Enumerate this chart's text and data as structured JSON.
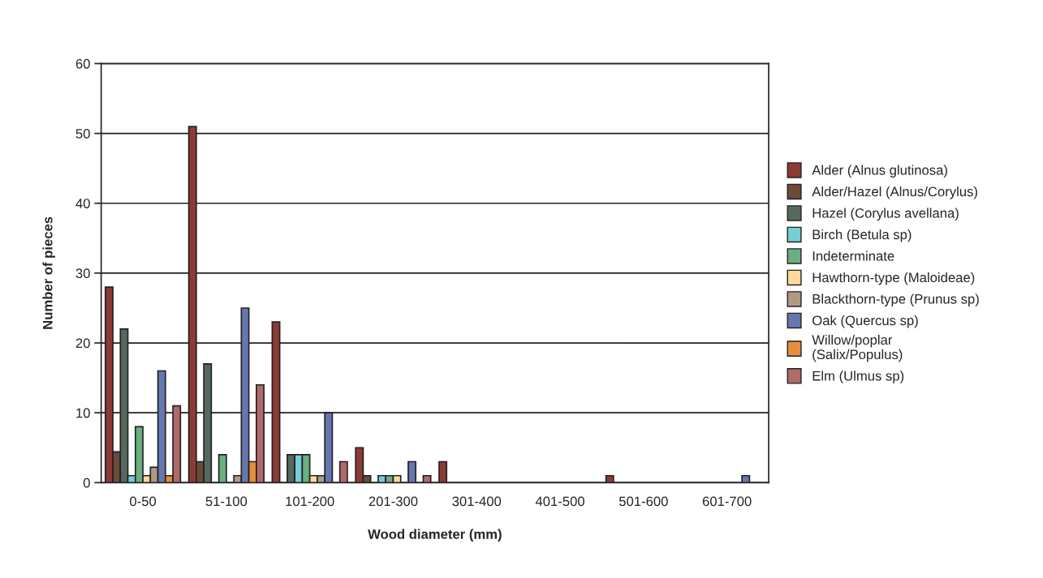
{
  "chart_data": {
    "type": "bar",
    "xlabel": "Wood diameter (mm)",
    "ylabel": "Number of pieces",
    "categories": [
      "0-50",
      "51-100",
      "101-200",
      "201-300",
      "301-400",
      "401-500",
      "501-600",
      "601-700"
    ],
    "series": [
      {
        "name": "Alder (Alnus glutinosa)",
        "color": "#8b3a35",
        "values": [
          28,
          51,
          23,
          5,
          3,
          null,
          1,
          null
        ]
      },
      {
        "name": "Alder/Hazel (Alnus/Corylus)",
        "color": "#6b4a3a",
        "values": [
          4.4,
          3,
          null,
          1,
          null,
          null,
          null,
          null
        ]
      },
      {
        "name": "Hazel (Corylus avellana)",
        "color": "#56695f",
        "values": [
          22,
          17,
          4,
          null,
          null,
          null,
          null,
          null
        ]
      },
      {
        "name": "Birch (Betula sp)",
        "color": "#76cdd6",
        "values": [
          1,
          null,
          4,
          1,
          null,
          null,
          null,
          null
        ]
      },
      {
        "name": "Indeterminate",
        "color": "#6aae82",
        "values": [
          8,
          4,
          4,
          1,
          null,
          null,
          null,
          null
        ]
      },
      {
        "name": "Hawthorn-type (Maloideae)",
        "color": "#fdd99b",
        "values": [
          1,
          null,
          1,
          1,
          null,
          null,
          null,
          null
        ]
      },
      {
        "name": "Blackthorn-type (Prunus sp)",
        "color": "#b09a86",
        "values": [
          2.2,
          1,
          1,
          null,
          null,
          null,
          null,
          null
        ]
      },
      {
        "name": "Oak (Quercus sp)",
        "color": "#6677b0",
        "values": [
          16,
          25,
          10,
          3,
          null,
          null,
          null,
          1
        ]
      },
      {
        "name": "Willow/poplar\n(Salix/Populus)",
        "color": "#e38f3d",
        "values": [
          1,
          3,
          null,
          null,
          null,
          null,
          null,
          null
        ]
      },
      {
        "name": "Elm (Ulmus sp)",
        "color": "#b06a6a",
        "values": [
          11,
          14,
          3,
          1,
          null,
          null,
          null,
          null
        ]
      }
    ],
    "ylim": [
      0,
      60
    ],
    "yticks": [
      0,
      10,
      20,
      30,
      40,
      50,
      60
    ],
    "grid": "y",
    "legend": "right"
  }
}
